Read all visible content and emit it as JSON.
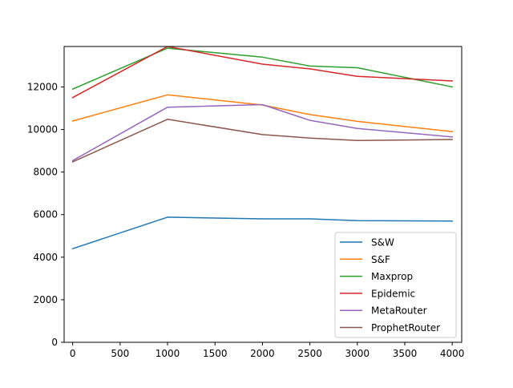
{
  "chart_data": {
    "type": "line",
    "x": [
      0,
      1000,
      2000,
      2500,
      3000,
      4000
    ],
    "xlim": [
      -90,
      4100
    ],
    "ylim": [
      0,
      13900
    ],
    "xticks": [
      "0",
      "500",
      "1000",
      "1500",
      "2000",
      "2500",
      "3000",
      "3500",
      "4000"
    ],
    "yticks": [
      "0",
      "2000",
      "4000",
      "6000",
      "8000",
      "10000",
      "12000"
    ],
    "grid": false,
    "legend_position": "lower-right",
    "series": [
      {
        "name": "S&W",
        "color": "#1f77b4",
        "values": [
          4400,
          5880,
          5800,
          5800,
          5720,
          5700
        ]
      },
      {
        "name": "S&F",
        "color": "#ff7f0e",
        "values": [
          10400,
          11630,
          11150,
          10700,
          10380,
          9900
        ]
      },
      {
        "name": "Maxprop",
        "color": "#2ca02c",
        "values": [
          11900,
          13820,
          13400,
          12980,
          12900,
          12000
        ]
      },
      {
        "name": "Epidemic",
        "color": "#d62728",
        "values": [
          11500,
          13900,
          13070,
          12850,
          12500,
          12280
        ]
      },
      {
        "name": "MetaRouter",
        "color": "#9467bd",
        "values": [
          8540,
          11050,
          11170,
          10430,
          10050,
          9650
        ]
      },
      {
        "name": "ProphetRouter",
        "color": "#8c564b",
        "values": [
          8480,
          10480,
          9760,
          9600,
          9480,
          9530
        ]
      }
    ]
  }
}
